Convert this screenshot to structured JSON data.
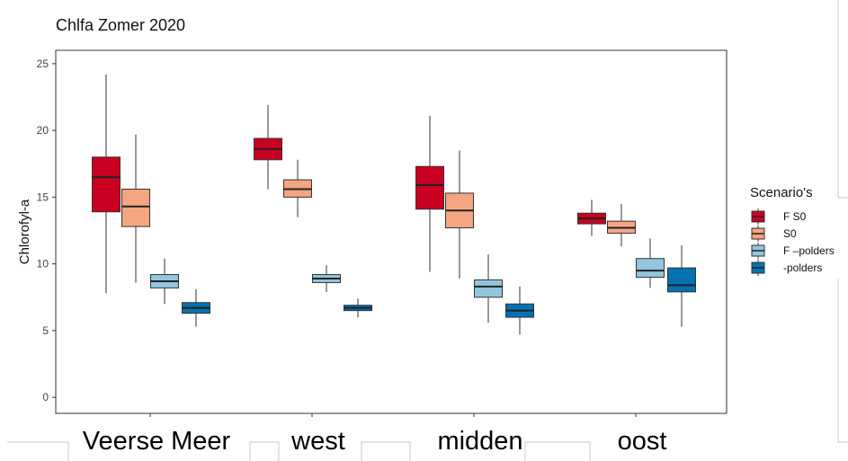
{
  "chart_data": {
    "type": "box",
    "title": "Chlfa Zomer 2020",
    "ylabel": "Chlorofyl-a",
    "xlabel": "",
    "ylim": [
      -1.2,
      26
    ],
    "yticks": [
      0,
      5,
      10,
      15,
      20,
      25
    ],
    "grid": false,
    "legend_title": "Scenario's",
    "legend_position": "right",
    "categories": [
      "Veerse Meer",
      "west",
      "midden",
      "oost"
    ],
    "series": [
      {
        "name": "F S0",
        "color": "#CA0020",
        "boxes": [
          {
            "min": 7.8,
            "q1": 13.9,
            "median": 16.5,
            "q3": 18.0,
            "max": 24.2
          },
          {
            "min": 15.6,
            "q1": 17.8,
            "median": 18.6,
            "q3": 19.4,
            "max": 21.9
          },
          {
            "min": 9.4,
            "q1": 14.1,
            "median": 15.9,
            "q3": 17.3,
            "max": 21.1
          },
          {
            "min": 12.1,
            "q1": 13.0,
            "median": 13.4,
            "q3": 13.8,
            "max": 14.8
          }
        ]
      },
      {
        "name": "S0",
        "color": "#F4A582",
        "boxes": [
          {
            "min": 8.6,
            "q1": 12.8,
            "median": 14.3,
            "q3": 15.6,
            "max": 19.7
          },
          {
            "min": 13.5,
            "q1": 15.0,
            "median": 15.6,
            "q3": 16.3,
            "max": 17.8
          },
          {
            "min": 8.9,
            "q1": 12.7,
            "median": 14.0,
            "q3": 15.3,
            "max": 18.5
          },
          {
            "min": 11.3,
            "q1": 12.3,
            "median": 12.7,
            "q3": 13.2,
            "max": 14.5
          }
        ]
      },
      {
        "name": "F –polders",
        "color": "#92C5DE",
        "boxes": [
          {
            "min": 7.0,
            "q1": 8.2,
            "median": 8.7,
            "q3": 9.2,
            "max": 10.4
          },
          {
            "min": 7.9,
            "q1": 8.6,
            "median": 8.9,
            "q3": 9.2,
            "max": 9.9
          },
          {
            "min": 5.6,
            "q1": 7.5,
            "median": 8.3,
            "q3": 8.8,
            "max": 10.7
          },
          {
            "min": 8.2,
            "q1": 9.0,
            "median": 9.5,
            "q3": 10.4,
            "max": 11.9
          }
        ]
      },
      {
        "name": "-polders",
        "color": "#0571B0",
        "boxes": [
          {
            "min": 5.3,
            "q1": 6.3,
            "median": 6.7,
            "q3": 7.1,
            "max": 8.1
          },
          {
            "min": 6.0,
            "q1": 6.5,
            "median": 6.7,
            "q3": 6.9,
            "max": 7.4
          },
          {
            "min": 4.7,
            "q1": 6.0,
            "median": 6.5,
            "q3": 7.0,
            "max": 8.3
          },
          {
            "min": 5.3,
            "q1": 7.9,
            "median": 8.4,
            "q3": 9.7,
            "max": 11.4
          }
        ]
      }
    ]
  }
}
